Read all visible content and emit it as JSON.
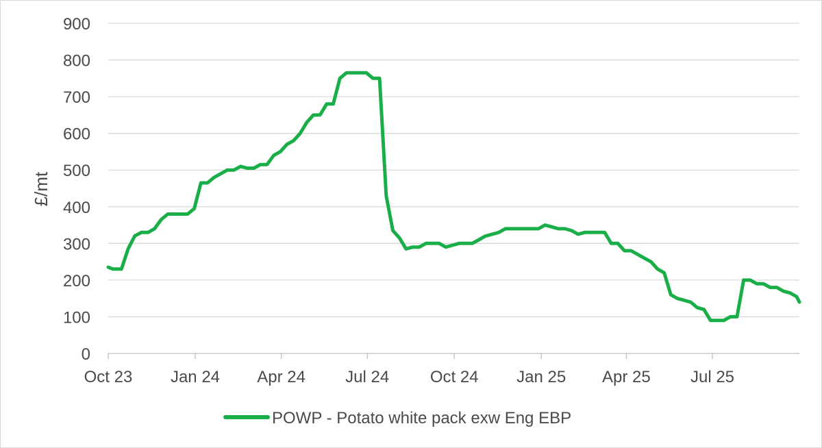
{
  "chart_data": {
    "type": "line",
    "title": "",
    "xlabel": "",
    "ylabel": "£/mt",
    "ylim": [
      0,
      900
    ],
    "yticks": [
      0,
      100,
      200,
      300,
      400,
      500,
      600,
      700,
      800,
      900
    ],
    "x_tick_labels": [
      "Oct 23",
      "Jan 24",
      "Apr 24",
      "Jul 24",
      "Oct 24",
      "Jan 25",
      "Apr 25",
      "Jul 25"
    ],
    "x_start": "2023-10-01",
    "x_end": "2025-10-01",
    "grid": true,
    "legend_position": "bottom",
    "series": [
      {
        "name": "POWP - Potato white pack exw Eng EBP",
        "color": "#1aae48",
        "points": [
          [
            "2023-10-01",
            235
          ],
          [
            "2023-10-06",
            230
          ],
          [
            "2023-10-15",
            230
          ],
          [
            "2023-10-22",
            285
          ],
          [
            "2023-10-29",
            320
          ],
          [
            "2023-11-05",
            330
          ],
          [
            "2023-11-12",
            330
          ],
          [
            "2023-11-19",
            340
          ],
          [
            "2023-11-26",
            365
          ],
          [
            "2023-12-03",
            380
          ],
          [
            "2023-12-10",
            380
          ],
          [
            "2023-12-24",
            380
          ],
          [
            "2023-12-31",
            395
          ],
          [
            "2024-01-07",
            465
          ],
          [
            "2024-01-14",
            465
          ],
          [
            "2024-01-21",
            480
          ],
          [
            "2024-01-28",
            490
          ],
          [
            "2024-02-04",
            500
          ],
          [
            "2024-02-11",
            500
          ],
          [
            "2024-02-18",
            510
          ],
          [
            "2024-02-25",
            505
          ],
          [
            "2024-03-03",
            505
          ],
          [
            "2024-03-10",
            515
          ],
          [
            "2024-03-17",
            515
          ],
          [
            "2024-03-24",
            540
          ],
          [
            "2024-03-31",
            550
          ],
          [
            "2024-04-07",
            570
          ],
          [
            "2024-04-14",
            580
          ],
          [
            "2024-04-21",
            600
          ],
          [
            "2024-04-28",
            630
          ],
          [
            "2024-05-05",
            650
          ],
          [
            "2024-05-12",
            650
          ],
          [
            "2024-05-19",
            680
          ],
          [
            "2024-05-26",
            680
          ],
          [
            "2024-06-02",
            750
          ],
          [
            "2024-06-09",
            765
          ],
          [
            "2024-06-16",
            765
          ],
          [
            "2024-06-30",
            765
          ],
          [
            "2024-07-07",
            750
          ],
          [
            "2024-07-14",
            750
          ],
          [
            "2024-07-21",
            430
          ],
          [
            "2024-07-28",
            335
          ],
          [
            "2024-08-04",
            315
          ],
          [
            "2024-08-11",
            285
          ],
          [
            "2024-08-18",
            290
          ],
          [
            "2024-08-25",
            290
          ],
          [
            "2024-09-01",
            300
          ],
          [
            "2024-09-15",
            300
          ],
          [
            "2024-09-22",
            290
          ],
          [
            "2024-09-29",
            295
          ],
          [
            "2024-10-06",
            300
          ],
          [
            "2024-10-20",
            300
          ],
          [
            "2024-10-27",
            310
          ],
          [
            "2024-11-03",
            320
          ],
          [
            "2024-11-17",
            330
          ],
          [
            "2024-11-24",
            340
          ],
          [
            "2024-12-08",
            340
          ],
          [
            "2024-12-29",
            340
          ],
          [
            "2025-01-05",
            350
          ],
          [
            "2025-01-12",
            345
          ],
          [
            "2025-01-19",
            340
          ],
          [
            "2025-01-26",
            340
          ],
          [
            "2025-02-02",
            335
          ],
          [
            "2025-02-09",
            325
          ],
          [
            "2025-02-16",
            330
          ],
          [
            "2025-03-09",
            330
          ],
          [
            "2025-03-16",
            300
          ],
          [
            "2025-03-23",
            300
          ],
          [
            "2025-03-30",
            280
          ],
          [
            "2025-04-06",
            280
          ],
          [
            "2025-04-13",
            270
          ],
          [
            "2025-04-20",
            260
          ],
          [
            "2025-04-27",
            250
          ],
          [
            "2025-05-04",
            230
          ],
          [
            "2025-05-11",
            220
          ],
          [
            "2025-05-18",
            160
          ],
          [
            "2025-05-25",
            150
          ],
          [
            "2025-06-08",
            140
          ],
          [
            "2025-06-15",
            125
          ],
          [
            "2025-06-22",
            120
          ],
          [
            "2025-06-29",
            90
          ],
          [
            "2025-07-13",
            90
          ],
          [
            "2025-07-20",
            100
          ],
          [
            "2025-07-27",
            100
          ],
          [
            "2025-08-03",
            200
          ],
          [
            "2025-08-10",
            200
          ],
          [
            "2025-08-17",
            190
          ],
          [
            "2025-08-24",
            190
          ],
          [
            "2025-08-31",
            180
          ],
          [
            "2025-09-07",
            180
          ],
          [
            "2025-09-14",
            170
          ],
          [
            "2025-09-21",
            165
          ],
          [
            "2025-09-28",
            155
          ],
          [
            "2025-10-01",
            140
          ]
        ]
      }
    ]
  }
}
